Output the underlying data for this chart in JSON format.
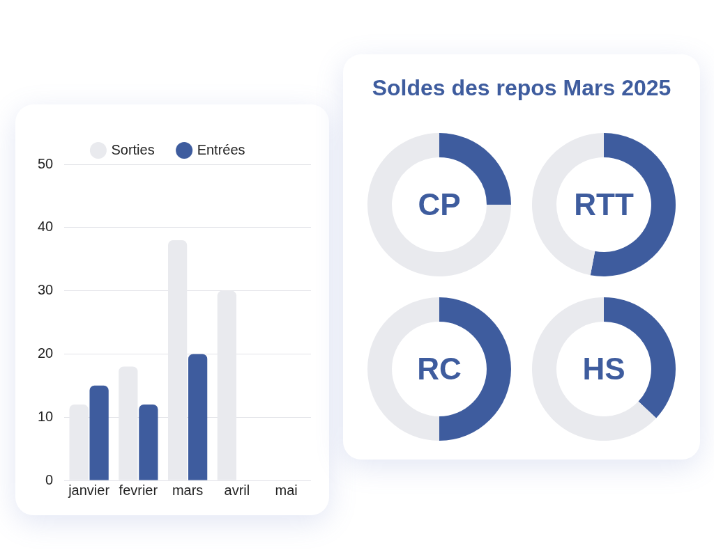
{
  "chart_data": [
    {
      "type": "bar",
      "categories": [
        "janvier",
        "fevrier",
        "mars",
        "avril",
        "mai"
      ],
      "series": [
        {
          "name": "Sorties",
          "color": "#e9eaee",
          "values": [
            12,
            18,
            38,
            30,
            null
          ]
        },
        {
          "name": "Entrées",
          "color": "#3e5c9e",
          "values": [
            15,
            12,
            20,
            null,
            null
          ]
        }
      ],
      "ylim": [
        0,
        50
      ],
      "yticks": [
        0,
        10,
        20,
        30,
        40,
        50
      ],
      "grid": "y",
      "legend": "top"
    },
    {
      "type": "other",
      "title": "Soldes des repos Mars 2025"
    },
    {
      "type": "donut",
      "title": "CP",
      "categories": [
        null,
        null
      ],
      "values": [
        25,
        75
      ],
      "colors": [
        "#3e5c9e",
        "#e9eaee"
      ]
    },
    {
      "type": "donut",
      "title": "RTT",
      "categories": [
        null,
        null
      ],
      "values": [
        53,
        47
      ],
      "colors": [
        "#3e5c9e",
        "#e9eaee"
      ]
    },
    {
      "type": "donut",
      "title": "RC",
      "categories": [
        null,
        null
      ],
      "values": [
        50,
        50
      ],
      "colors": [
        "#3e5c9e",
        "#e9eaee"
      ]
    },
    {
      "type": "donut",
      "title": "HS",
      "categories": [
        null,
        null
      ],
      "values": [
        37,
        63
      ],
      "colors": [
        "#3e5c9e",
        "#e9eaee"
      ]
    }
  ]
}
